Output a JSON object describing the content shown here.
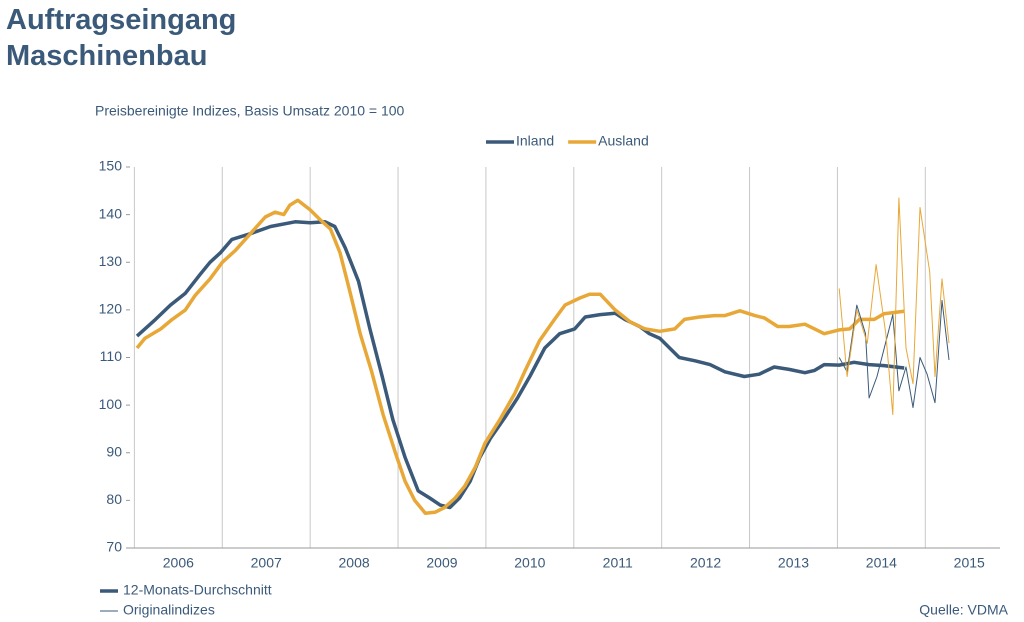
{
  "chart_data": {
    "type": "line",
    "title": "Auftragseingang Maschinenbau",
    "subtitle": "Preisbereinigte Indizes, Basis Umsatz 2010 = 100",
    "notes": [
      "12-Monats-Durchschnitt",
      "Originalindizes"
    ],
    "source": "Quelle: VDMA",
    "xlim": [
      2005.95,
      2015.85
    ],
    "xticks": [
      2006,
      2007,
      2008,
      2009,
      2010,
      2011,
      2012,
      2013,
      2014,
      2015
    ],
    "ylim": [
      70,
      150
    ],
    "yticks": [
      70,
      80,
      90,
      100,
      110,
      120,
      130,
      140,
      150
    ],
    "grid": "x",
    "legend": "top",
    "series": [
      {
        "name": "Inland",
        "color": "#3b5a7a",
        "width": 3.5,
        "x": [
          2006.03,
          2006.24,
          2006.41,
          2006.58,
          2006.75,
          2006.86,
          2006.98,
          2007.11,
          2007.32,
          2007.55,
          2007.83,
          2008.0,
          2008.17,
          2008.28,
          2008.4,
          2008.55,
          2008.68,
          2008.82,
          2008.94,
          2009.08,
          2009.23,
          2009.36,
          2009.48,
          2009.59,
          2009.7,
          2009.82,
          2009.93,
          2010.05,
          2010.22,
          2010.36,
          2010.5,
          2010.67,
          2010.84,
          2011.01,
          2011.13,
          2011.3,
          2011.47,
          2011.58,
          2011.75,
          2011.86,
          2011.98,
          2012.09,
          2012.2,
          2012.38,
          2012.55,
          2012.72,
          2012.94,
          2013.11,
          2013.28,
          2013.45,
          2013.63,
          2013.74,
          2013.85,
          2014.02,
          2014.19,
          2014.36,
          2014.53,
          2014.76
        ],
        "values": [
          114.5,
          118,
          121,
          123.5,
          127.5,
          130,
          132,
          134.8,
          136,
          137.5,
          138.5,
          138.3,
          138.5,
          137.5,
          133,
          126,
          116,
          106,
          97,
          89,
          82,
          80.5,
          79,
          78.5,
          80.5,
          84,
          89,
          93,
          97.5,
          101.5,
          106,
          112,
          115,
          116,
          118.5,
          119,
          119.3,
          118,
          116.5,
          115,
          114,
          112,
          110,
          109.3,
          108.5,
          107,
          106,
          106.5,
          108,
          107.5,
          106.8,
          107.3,
          108.5,
          108.4,
          109,
          108.5,
          108.3,
          107.8
        ]
      },
      {
        "name": "Ausland",
        "color": "#e8a838",
        "width": 3.5,
        "x": [
          2006.03,
          2006.12,
          2006.3,
          2006.43,
          2006.58,
          2006.69,
          2006.86,
          2007.0,
          2007.15,
          2007.32,
          2007.49,
          2007.6,
          2007.7,
          2007.77,
          2007.86,
          2008.0,
          2008.11,
          2008.23,
          2008.34,
          2008.45,
          2008.57,
          2008.7,
          2008.83,
          2008.97,
          2009.08,
          2009.19,
          2009.31,
          2009.42,
          2009.53,
          2009.65,
          2009.76,
          2009.88,
          2009.99,
          2010.16,
          2010.33,
          2010.44,
          2010.61,
          2010.78,
          2010.9,
          2011.07,
          2011.18,
          2011.3,
          2011.47,
          2011.64,
          2011.81,
          2011.98,
          2012.15,
          2012.26,
          2012.43,
          2012.6,
          2012.72,
          2012.89,
          2013.06,
          2013.17,
          2013.32,
          2013.45,
          2013.63,
          2013.74,
          2013.85,
          2014.02,
          2014.14,
          2014.25,
          2014.42,
          2014.53,
          2014.76
        ],
        "values": [
          112,
          114,
          116,
          118,
          120,
          123,
          126.5,
          130,
          132.5,
          136,
          139.5,
          140.5,
          140,
          142,
          143,
          141,
          139,
          137,
          132,
          124,
          115,
          107,
          98,
          90,
          84,
          80,
          77.3,
          77.5,
          78.5,
          80.5,
          83,
          87,
          92,
          97,
          102.5,
          107,
          113.5,
          118,
          121,
          122.5,
          123.3,
          123.3,
          120,
          117.5,
          116,
          115.5,
          116,
          118,
          118.5,
          118.8,
          118.8,
          119.8,
          118.8,
          118.3,
          116.5,
          116.5,
          117,
          116,
          115,
          115.8,
          116,
          118,
          118,
          119.2,
          119.7
        ]
      },
      {
        "color": "#3b5a7a",
        "width": 1,
        "x": [
          2014.02,
          2014.11,
          2014.22,
          2014.32,
          2014.36,
          2014.45,
          2014.63,
          2014.7,
          2014.78,
          2014.86,
          2014.94,
          2015.02,
          2015.11,
          2015.19,
          2015.27
        ],
        "values": [
          110,
          107,
          121,
          115,
          101.5,
          106,
          119,
          103,
          108,
          99.5,
          110,
          106.5,
          100.5,
          122,
          109.5
        ]
      },
      {
        "color": "#e8a838",
        "width": 1,
        "x": [
          2014.02,
          2014.11,
          2014.22,
          2014.34,
          2014.44,
          2014.55,
          2014.63,
          2014.7,
          2014.78,
          2014.86,
          2014.94,
          2015.05,
          2015.11,
          2015.19,
          2015.27
        ],
        "values": [
          124.5,
          106,
          120,
          113,
          129.5,
          115,
          98,
          143.5,
          112,
          104.5,
          141.5,
          128,
          106,
          126.5,
          113
        ]
      }
    ]
  }
}
